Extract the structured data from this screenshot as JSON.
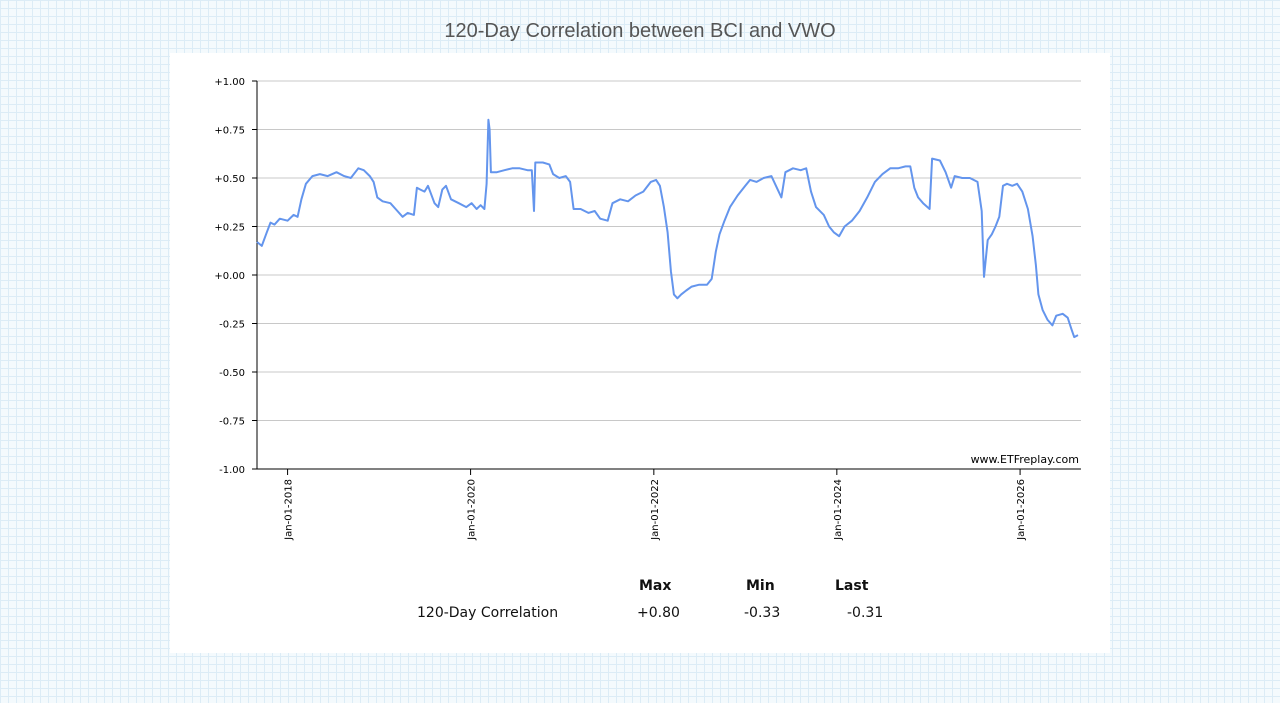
{
  "chart_data": {
    "type": "line",
    "title": "120-Day Correlation between BCI and VWO",
    "xlabel": "",
    "ylabel": "",
    "ylim": [
      -1.0,
      1.0
    ],
    "yticks": [
      "+1.00",
      "+0.75",
      "+0.50",
      "+0.25",
      "+0.00",
      "-0.25",
      "-0.50",
      "-0.75",
      "-1.00"
    ],
    "ytick_values": [
      1.0,
      0.75,
      0.5,
      0.25,
      0.0,
      -0.25,
      -0.5,
      -0.75,
      -1.0
    ],
    "xlim": [
      "2017-09-01",
      "2026-09-01"
    ],
    "xticks": [
      "Jan-01-2018",
      "Jan-01-2020",
      "Jan-01-2022",
      "Jan-01-2024",
      "Jan-01-2026"
    ],
    "xtick_dates": [
      "2018-01-01",
      "2020-01-01",
      "2022-01-01",
      "2024-01-01",
      "2026-01-01"
    ],
    "grid": true,
    "line_color": "#6495ed",
    "watermark": "www.ETFreplay.com",
    "series": [
      {
        "name": "120-Day Correlation",
        "points": [
          [
            "2017-09-01",
            0.17
          ],
          [
            "2017-09-20",
            0.15
          ],
          [
            "2017-10-10",
            0.22
          ],
          [
            "2017-10-25",
            0.27
          ],
          [
            "2017-11-10",
            0.26
          ],
          [
            "2017-12-01",
            0.29
          ],
          [
            "2018-01-01",
            0.28
          ],
          [
            "2018-01-25",
            0.31
          ],
          [
            "2018-02-10",
            0.3
          ],
          [
            "2018-02-25",
            0.39
          ],
          [
            "2018-03-15",
            0.47
          ],
          [
            "2018-04-10",
            0.51
          ],
          [
            "2018-05-10",
            0.52
          ],
          [
            "2018-06-10",
            0.51
          ],
          [
            "2018-07-15",
            0.53
          ],
          [
            "2018-08-15",
            0.51
          ],
          [
            "2018-09-10",
            0.5
          ],
          [
            "2018-10-10",
            0.55
          ],
          [
            "2018-11-01",
            0.54
          ],
          [
            "2018-11-25",
            0.51
          ],
          [
            "2018-12-10",
            0.48
          ],
          [
            "2018-12-25",
            0.4
          ],
          [
            "2019-01-15",
            0.38
          ],
          [
            "2019-02-15",
            0.37
          ],
          [
            "2019-03-15",
            0.33
          ],
          [
            "2019-04-05",
            0.3
          ],
          [
            "2019-04-25",
            0.32
          ],
          [
            "2019-05-20",
            0.31
          ],
          [
            "2019-06-01",
            0.45
          ],
          [
            "2019-06-15",
            0.44
          ],
          [
            "2019-07-01",
            0.43
          ],
          [
            "2019-07-15",
            0.46
          ],
          [
            "2019-08-10",
            0.37
          ],
          [
            "2019-08-25",
            0.35
          ],
          [
            "2019-09-10",
            0.44
          ],
          [
            "2019-09-25",
            0.46
          ],
          [
            "2019-10-15",
            0.39
          ],
          [
            "2019-11-15",
            0.37
          ],
          [
            "2019-12-15",
            0.35
          ],
          [
            "2020-01-05",
            0.37
          ],
          [
            "2020-01-25",
            0.34
          ],
          [
            "2020-02-10",
            0.36
          ],
          [
            "2020-02-25",
            0.34
          ],
          [
            "2020-03-05",
            0.47
          ],
          [
            "2020-03-12",
            0.8
          ],
          [
            "2020-03-17",
            0.75
          ],
          [
            "2020-03-22",
            0.53
          ],
          [
            "2020-04-15",
            0.53
          ],
          [
            "2020-05-15",
            0.54
          ],
          [
            "2020-06-15",
            0.55
          ],
          [
            "2020-07-15",
            0.55
          ],
          [
            "2020-08-15",
            0.54
          ],
          [
            "2020-09-01",
            0.54
          ],
          [
            "2020-09-10",
            0.33
          ],
          [
            "2020-09-15",
            0.58
          ],
          [
            "2020-10-15",
            0.58
          ],
          [
            "2020-11-10",
            0.57
          ],
          [
            "2020-11-25",
            0.52
          ],
          [
            "2020-12-20",
            0.5
          ],
          [
            "2021-01-15",
            0.51
          ],
          [
            "2021-02-01",
            0.48
          ],
          [
            "2021-02-15",
            0.34
          ],
          [
            "2021-03-15",
            0.34
          ],
          [
            "2021-04-15",
            0.32
          ],
          [
            "2021-05-10",
            0.33
          ],
          [
            "2021-06-01",
            0.29
          ],
          [
            "2021-07-01",
            0.28
          ],
          [
            "2021-07-20",
            0.37
          ],
          [
            "2021-08-20",
            0.39
          ],
          [
            "2021-09-20",
            0.38
          ],
          [
            "2021-10-20",
            0.41
          ],
          [
            "2021-11-20",
            0.43
          ],
          [
            "2021-12-20",
            0.48
          ],
          [
            "2022-01-10",
            0.49
          ],
          [
            "2022-01-25",
            0.46
          ],
          [
            "2022-02-10",
            0.35
          ],
          [
            "2022-02-25",
            0.22
          ],
          [
            "2022-03-10",
            0.02
          ],
          [
            "2022-03-22",
            -0.1
          ],
          [
            "2022-04-05",
            -0.12
          ],
          [
            "2022-04-20",
            -0.1
          ],
          [
            "2022-05-10",
            -0.08
          ],
          [
            "2022-06-01",
            -0.06
          ],
          [
            "2022-07-01",
            -0.05
          ],
          [
            "2022-08-01",
            -0.05
          ],
          [
            "2022-08-20",
            -0.02
          ],
          [
            "2022-09-05",
            0.12
          ],
          [
            "2022-09-20",
            0.21
          ],
          [
            "2022-10-10",
            0.28
          ],
          [
            "2022-11-01",
            0.35
          ],
          [
            "2022-12-01",
            0.41
          ],
          [
            "2023-01-01",
            0.46
          ],
          [
            "2023-01-20",
            0.49
          ],
          [
            "2023-02-15",
            0.48
          ],
          [
            "2023-03-15",
            0.5
          ],
          [
            "2023-04-15",
            0.51
          ],
          [
            "2023-05-10",
            0.44
          ],
          [
            "2023-05-25",
            0.4
          ],
          [
            "2023-06-10",
            0.53
          ],
          [
            "2023-07-10",
            0.55
          ],
          [
            "2023-08-10",
            0.54
          ],
          [
            "2023-09-01",
            0.55
          ],
          [
            "2023-09-20",
            0.43
          ],
          [
            "2023-10-10",
            0.35
          ],
          [
            "2023-11-10",
            0.31
          ],
          [
            "2023-12-01",
            0.25
          ],
          [
            "2023-12-20",
            0.22
          ],
          [
            "2024-01-10",
            0.2
          ],
          [
            "2024-02-01",
            0.25
          ],
          [
            "2024-03-01",
            0.28
          ],
          [
            "2024-04-01",
            0.33
          ],
          [
            "2024-05-01",
            0.4
          ],
          [
            "2024-06-01",
            0.48
          ],
          [
            "2024-07-01",
            0.52
          ],
          [
            "2024-08-01",
            0.55
          ],
          [
            "2024-09-01",
            0.55
          ],
          [
            "2024-10-01",
            0.56
          ],
          [
            "2024-10-20",
            0.56
          ],
          [
            "2024-11-05",
            0.45
          ],
          [
            "2024-11-20",
            0.4
          ],
          [
            "2024-12-10",
            0.37
          ],
          [
            "2025-01-05",
            0.34
          ],
          [
            "2025-01-15",
            0.6
          ],
          [
            "2025-02-15",
            0.59
          ],
          [
            "2025-03-10",
            0.53
          ],
          [
            "2025-04-01",
            0.45
          ],
          [
            "2025-04-15",
            0.51
          ],
          [
            "2025-05-15",
            0.5
          ],
          [
            "2025-06-15",
            0.5
          ],
          [
            "2025-07-15",
            0.48
          ],
          [
            "2025-08-01",
            0.33
          ],
          [
            "2025-08-10",
            -0.01
          ],
          [
            "2025-08-25",
            0.18
          ],
          [
            "2025-09-10",
            0.21
          ],
          [
            "2025-09-25",
            0.25
          ],
          [
            "2025-10-10",
            0.3
          ],
          [
            "2025-10-25",
            0.46
          ],
          [
            "2025-11-10",
            0.47
          ],
          [
            "2025-12-01",
            0.46
          ],
          [
            "2025-12-20",
            0.47
          ],
          [
            "2026-01-10",
            0.43
          ],
          [
            "2026-02-01",
            0.34
          ],
          [
            "2026-02-20",
            0.2
          ],
          [
            "2026-03-05",
            0.05
          ],
          [
            "2026-03-15",
            -0.1
          ],
          [
            "2026-04-01",
            -0.18
          ],
          [
            "2026-04-20",
            -0.23
          ],
          [
            "2026-05-10",
            -0.26
          ],
          [
            "2026-05-25",
            -0.21
          ],
          [
            "2026-06-20",
            -0.2
          ],
          [
            "2026-07-10",
            -0.22
          ],
          [
            "2026-07-25",
            -0.28
          ],
          [
            "2026-08-05",
            -0.32
          ],
          [
            "2026-08-20",
            -0.31
          ]
        ]
      }
    ]
  },
  "stats": {
    "headers": [
      "Max",
      "Min",
      "Last"
    ],
    "row_label": "120-Day Correlation",
    "values": [
      "+0.80",
      "-0.33",
      "-0.31"
    ]
  }
}
